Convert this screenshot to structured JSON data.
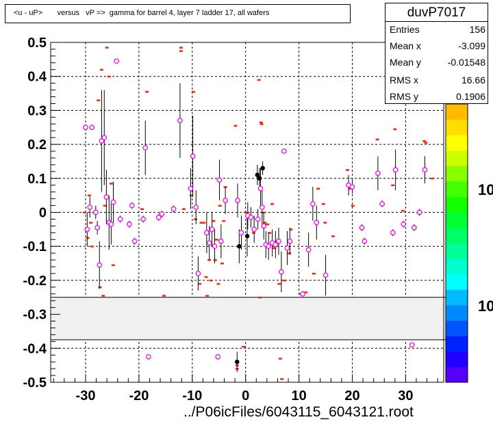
{
  "title": "<u - uP>       versus   vP =>  gamma for barrel 4, layer 7 ladder 17, all wafers",
  "stats": {
    "name": "duvP7017",
    "rows": [
      {
        "label": "Entries",
        "value": "156"
      },
      {
        "label": "Mean x",
        "value": "-3.099"
      },
      {
        "label": "Mean y",
        "value": "-0.01548"
      },
      {
        "label": "RMS x",
        "value": "16.66"
      },
      {
        "label": "RMS y",
        "value": "0.1906"
      }
    ]
  },
  "colors": {
    "marker": "#ff00ff",
    "histogram": "#ff2200",
    "point_black": "#000000",
    "band": "#f0f0f0"
  },
  "chart_data": {
    "type": "scatter",
    "xlabel": "../P06icFiles/6043115_6043121.root",
    "xlim": [
      -37,
      37
    ],
    "ylim": [
      -0.5,
      0.5
    ],
    "x_ticks": [
      "-30",
      "-20",
      "-10",
      "0",
      "10",
      "20",
      "30"
    ],
    "y_ticks": [
      "0.5",
      "0.4",
      "0.3",
      "0.2",
      "0.1",
      "0",
      "-0.1",
      "-0.2",
      "-0.3",
      "-0.4",
      "-0.5"
    ],
    "grid": true,
    "gap_band": [
      -0.375,
      -0.25
    ],
    "colorbar": {
      "labels": [
        "10",
        "10"
      ],
      "colors": [
        "#5500ff",
        "#2200ff",
        "#0022ff",
        "#0055ff",
        "#0088ff",
        "#00bbff",
        "#00ffff",
        "#00ffcc",
        "#00ff99",
        "#00ff66",
        "#00ff33",
        "#11ff00",
        "#44ff00",
        "#88ff00",
        "#ccff00",
        "#ffff00",
        "#ffdd00",
        "#ffbb00"
      ]
    },
    "magenta_points": [
      {
        "x": -30.0,
        "y": 0.25,
        "e": 0.0
      },
      {
        "x": -29.7,
        "y": -0.05,
        "e": 0.05
      },
      {
        "x": -29.2,
        "y": 0.015,
        "e": 0.03
      },
      {
        "x": -28.8,
        "y": 0.25,
        "e": 0.0
      },
      {
        "x": -28.1,
        "y": 0.0,
        "e": 0.02
      },
      {
        "x": -27.8,
        "y": -0.045,
        "e": 0.02
      },
      {
        "x": -27.4,
        "y": -0.155,
        "e": 0.07
      },
      {
        "x": -27.0,
        "y": 0.21,
        "e": 0.15
      },
      {
        "x": -26.5,
        "y": 0.22,
        "e": 0.14
      },
      {
        "x": -26.1,
        "y": 0.045,
        "e": 0.08
      },
      {
        "x": -25.6,
        "y": -0.03,
        "e": 0.08
      },
      {
        "x": -25.2,
        "y": -0.035,
        "e": 0.06
      },
      {
        "x": -24.8,
        "y": 0.03,
        "e": 0.06
      },
      {
        "x": -24.2,
        "y": 0.445,
        "e": 0.0
      },
      {
        "x": -23.5,
        "y": -0.02,
        "e": 0.01
      },
      {
        "x": -21.8,
        "y": -0.035,
        "e": 0.01
      },
      {
        "x": -21.3,
        "y": 0.02,
        "e": 0.01
      },
      {
        "x": -20.8,
        "y": -0.085,
        "e": 0.01
      },
      {
        "x": -19.2,
        "y": -0.02,
        "e": 0.01
      },
      {
        "x": -18.8,
        "y": 0.19,
        "e": 0.08
      },
      {
        "x": -18.2,
        "y": -0.425,
        "e": 0.0
      },
      {
        "x": -16.3,
        "y": -0.015,
        "e": 0.01
      },
      {
        "x": -15.7,
        "y": -0.005,
        "e": 0.01
      },
      {
        "x": -13.5,
        "y": 0.01,
        "e": 0.01
      },
      {
        "x": -12.3,
        "y": 0.27,
        "e": 0.11
      },
      {
        "x": -10.3,
        "y": 0.07,
        "e": 0.06
      },
      {
        "x": -9.9,
        "y": 0.165,
        "e": 0.12
      },
      {
        "x": -9.3,
        "y": 0.015,
        "e": 0.05
      },
      {
        "x": -8.9,
        "y": -0.18,
        "e": 0.05
      },
      {
        "x": -7.3,
        "y": -0.06,
        "e": 0.06
      },
      {
        "x": -6.8,
        "y": -0.09,
        "e": 0.05
      },
      {
        "x": -6.3,
        "y": -0.05,
        "e": 0.05
      },
      {
        "x": -5.8,
        "y": -0.1,
        "e": 0.05
      },
      {
        "x": -5.2,
        "y": -0.425,
        "e": 0.0
      },
      {
        "x": -4.9,
        "y": 0.095,
        "e": 0.06
      },
      {
        "x": -4.6,
        "y": -0.085,
        "e": 0.05
      },
      {
        "x": -3.8,
        "y": 0.035,
        "e": 0.04
      },
      {
        "x": -1.5,
        "y": 0.035,
        "e": 0.05
      },
      {
        "x": -0.8,
        "y": -0.06,
        "e": 0.05
      },
      {
        "x": 0.4,
        "y": -0.01,
        "e": 0.04
      },
      {
        "x": 1.0,
        "y": -0.015,
        "e": 0.03
      },
      {
        "x": 1.6,
        "y": -0.05,
        "e": 0.04
      },
      {
        "x": 2.3,
        "y": -0.02,
        "e": 0.03
      },
      {
        "x": 2.8,
        "y": 0.07,
        "e": 0.06
      },
      {
        "x": 3.1,
        "y": 0.015,
        "e": 0.05
      },
      {
        "x": 3.4,
        "y": -0.04,
        "e": 0.04
      },
      {
        "x": 3.8,
        "y": -0.095,
        "e": 0.04
      },
      {
        "x": 4.3,
        "y": -0.1,
        "e": 0.04
      },
      {
        "x": 5.0,
        "y": -0.09,
        "e": 0.04
      },
      {
        "x": 5.6,
        "y": -0.095,
        "e": 0.04
      },
      {
        "x": 6.2,
        "y": -0.085,
        "e": 0.04
      },
      {
        "x": 6.7,
        "y": -0.175,
        "e": 0.06
      },
      {
        "x": 7.2,
        "y": 0.18,
        "e": 0.0
      },
      {
        "x": 7.8,
        "y": -0.105,
        "e": 0.05
      },
      {
        "x": 8.3,
        "y": -0.085,
        "e": 0.04
      },
      {
        "x": 10.7,
        "y": -0.24,
        "e": 0.0
      },
      {
        "x": 11.8,
        "y": -0.11,
        "e": 0.05
      },
      {
        "x": 12.6,
        "y": 0.025,
        "e": 0.05
      },
      {
        "x": 13.3,
        "y": -0.03,
        "e": 0.05
      },
      {
        "x": 15.0,
        "y": -0.185,
        "e": 0.06
      },
      {
        "x": 19.3,
        "y": 0.08,
        "e": 0.03
      },
      {
        "x": 20.0,
        "y": 0.075,
        "e": 0.02
      },
      {
        "x": 21.8,
        "y": -0.045,
        "e": 0.01
      },
      {
        "x": 22.3,
        "y": -0.085,
        "e": 0.01
      },
      {
        "x": 24.8,
        "y": 0.115,
        "e": 0.05
      },
      {
        "x": 25.6,
        "y": 0.025,
        "e": 0.01
      },
      {
        "x": 27.6,
        "y": -0.06,
        "e": 0.01
      },
      {
        "x": 28.1,
        "y": 0.125,
        "e": 0.06
      },
      {
        "x": 29.6,
        "y": -0.035,
        "e": 0.01
      },
      {
        "x": 31.2,
        "y": -0.39,
        "e": 0.0
      },
      {
        "x": 31.6,
        "y": -0.045,
        "e": 0.01
      },
      {
        "x": 32.6,
        "y": 0.0,
        "e": 0.01
      },
      {
        "x": 33.6,
        "y": 0.125,
        "e": 0.04
      }
    ],
    "black_points": [
      {
        "x": -1.2,
        "y": -0.1,
        "e": 0.05
      },
      {
        "x": 0.3,
        "y": -0.07,
        "e": 0.06
      },
      {
        "x": 2.2,
        "y": 0.11,
        "e": 0.03
      },
      {
        "x": 2.6,
        "y": 0.1,
        "e": 0.03
      },
      {
        "x": 3.2,
        "y": 0.13,
        "e": 0.02
      },
      {
        "x": -1.6,
        "y": -0.44,
        "e": 0.03
      }
    ],
    "histogram_marks": [
      {
        "x": -30.2,
        "y": 0.0
      },
      {
        "x": -29.6,
        "y": -0.075
      },
      {
        "x": -29.3,
        "y": 0.05
      },
      {
        "x": -29.0,
        "y": -0.03
      },
      {
        "x": -28.8,
        "y": -0.1
      },
      {
        "x": -27.6,
        "y": 0.33
      },
      {
        "x": -27.3,
        "y": -0.22
      },
      {
        "x": -27.0,
        "y": 0.42
      },
      {
        "x": -26.7,
        "y": -0.245
      },
      {
        "x": -26.4,
        "y": 0.02
      },
      {
        "x": -26.0,
        "y": 0.485
      },
      {
        "x": -25.6,
        "y": 0.4
      },
      {
        "x": -25.2,
        "y": 0.085
      },
      {
        "x": -24.8,
        "y": -0.155
      },
      {
        "x": -19.4,
        "y": 0.01
      },
      {
        "x": -18.5,
        "y": 0.355
      },
      {
        "x": -15.3,
        "y": -0.245
      },
      {
        "x": -12.1,
        "y": 0.485
      },
      {
        "x": -12.1,
        "y": 0.475
      },
      {
        "x": -11.6,
        "y": 0.01
      },
      {
        "x": -10.2,
        "y": 0.05
      },
      {
        "x": -9.8,
        "y": 0.355
      },
      {
        "x": -9.4,
        "y": -0.02
      },
      {
        "x": -8.6,
        "y": -0.21
      },
      {
        "x": -8.3,
        "y": -0.03
      },
      {
        "x": -7.8,
        "y": -0.03
      },
      {
        "x": -7.4,
        "y": -0.19
      },
      {
        "x": -7.2,
        "y": -0.245
      },
      {
        "x": -6.8,
        "y": -0.14
      },
      {
        "x": -6.5,
        "y": -0.2
      },
      {
        "x": -6.0,
        "y": -0.025
      },
      {
        "x": -5.7,
        "y": -0.14
      },
      {
        "x": -5.4,
        "y": -0.08
      },
      {
        "x": -5.1,
        "y": -0.21
      },
      {
        "x": -4.8,
        "y": 0.02
      },
      {
        "x": -4.4,
        "y": -0.15
      },
      {
        "x": -4.1,
        "y": -0.025
      },
      {
        "x": -3.8,
        "y": 0.075
      },
      {
        "x": -1.9,
        "y": 0.255
      },
      {
        "x": -1.6,
        "y": -0.46
      },
      {
        "x": -1.6,
        "y": -0.45
      },
      {
        "x": -0.4,
        "y": -0.395
      },
      {
        "x": 0.0,
        "y": 0.0
      },
      {
        "x": 1.5,
        "y": -0.06
      },
      {
        "x": 2.5,
        "y": 0.39
      },
      {
        "x": 2.7,
        "y": -0.25
      },
      {
        "x": 2.9,
        "y": 0.265
      },
      {
        "x": 3.0,
        "y": 0.26
      },
      {
        "x": 3.3,
        "y": 0.0
      },
      {
        "x": 3.6,
        "y": -0.03
      },
      {
        "x": 4.1,
        "y": -0.035
      },
      {
        "x": 4.5,
        "y": -0.06
      },
      {
        "x": 5.0,
        "y": 0.025
      },
      {
        "x": 5.4,
        "y": -0.105
      },
      {
        "x": 5.8,
        "y": -0.085
      },
      {
        "x": 6.3,
        "y": -0.21
      },
      {
        "x": 6.5,
        "y": -0.43
      },
      {
        "x": 6.8,
        "y": -0.49
      },
      {
        "x": 7.3,
        "y": -0.2
      },
      {
        "x": 8.2,
        "y": -0.12
      },
      {
        "x": 8.5,
        "y": -0.05
      },
      {
        "x": 10.4,
        "y": -0.24
      },
      {
        "x": 11.3,
        "y": -0.235
      },
      {
        "x": 12.8,
        "y": -0.18
      },
      {
        "x": 13.6,
        "y": 0.07
      },
      {
        "x": 14.6,
        "y": 0.025
      },
      {
        "x": 14.9,
        "y": -0.03
      },
      {
        "x": 16.4,
        "y": -0.07
      },
      {
        "x": 19.1,
        "y": 0.125
      },
      {
        "x": 19.6,
        "y": 0.07
      },
      {
        "x": 20.1,
        "y": 0.02
      },
      {
        "x": 24.7,
        "y": 0.215
      },
      {
        "x": 27.6,
        "y": 0.08
      },
      {
        "x": 28.0,
        "y": 0.245
      },
      {
        "x": 29.5,
        "y": 0.005
      },
      {
        "x": 33.5,
        "y": 0.21
      },
      {
        "x": 33.8,
        "y": 0.205
      },
      {
        "x": 35.0,
        "y": 0.1
      }
    ]
  }
}
